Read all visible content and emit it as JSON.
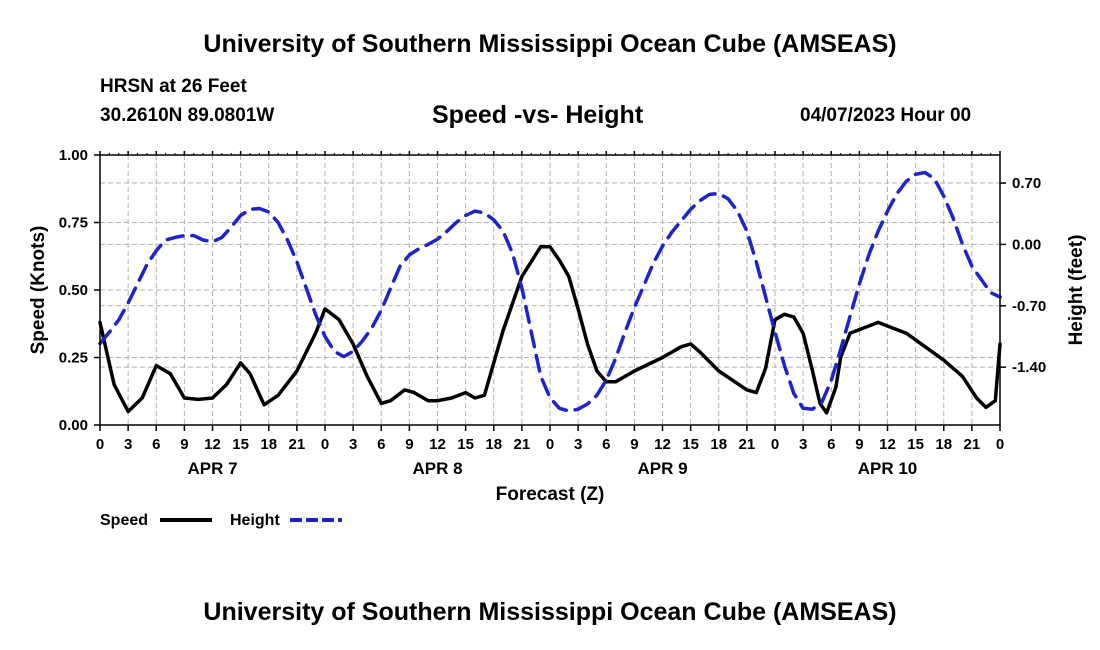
{
  "header": {
    "title": "University of Southern Mississippi Ocean Cube (AMSEAS)",
    "station": "HRSN at 26 Feet",
    "coordinates": "30.2610N  89.0801W",
    "subtitle": "Speed -vs- Height",
    "datetime": "04/07/2023 Hour 00"
  },
  "footer": {
    "title": "University of Southern Mississippi Ocean Cube (AMSEAS)"
  },
  "chart_data": {
    "type": "line",
    "xlabel": "Forecast (Z)",
    "ylabel": "Speed (Knots)",
    "y2label": "Height (feet)",
    "x_range_hours": [
      0,
      96
    ],
    "ylim": [
      0,
      1.0
    ],
    "y2lim": [
      -2.06,
      1.02
    ],
    "grid": true,
    "y_ticks": [
      "0.00",
      "0.25",
      "0.50",
      "0.75",
      "1.00"
    ],
    "y_tick_values": [
      0,
      0.25,
      0.5,
      0.75,
      1.0
    ],
    "y2_ticks": [
      "-1.40",
      "-0.70",
      "0.00",
      "0.70"
    ],
    "y2_tick_values": [
      -1.4,
      -0.7,
      0.0,
      0.7
    ],
    "x_tick_labels": [
      "0",
      "3",
      "6",
      "9",
      "12",
      "15",
      "18",
      "21"
    ],
    "day_labels": [
      "APR 7",
      "APR 8",
      "APR 9",
      "APR 10"
    ],
    "series": [
      {
        "name": "Speed",
        "color": "#000000",
        "style": "solid",
        "axis": "left",
        "points": [
          [
            0,
            0.38
          ],
          [
            1.5,
            0.15
          ],
          [
            3,
            0.05
          ],
          [
            4.5,
            0.1
          ],
          [
            6,
            0.22
          ],
          [
            7.5,
            0.19
          ],
          [
            9,
            0.1
          ],
          [
            10.5,
            0.095
          ],
          [
            12,
            0.1
          ],
          [
            13.5,
            0.15
          ],
          [
            15,
            0.23
          ],
          [
            16,
            0.19
          ],
          [
            17.5,
            0.075
          ],
          [
            19,
            0.11
          ],
          [
            21,
            0.2
          ],
          [
            23,
            0.34
          ],
          [
            24,
            0.43
          ],
          [
            25.5,
            0.39
          ],
          [
            27,
            0.3
          ],
          [
            28.5,
            0.18
          ],
          [
            30,
            0.08
          ],
          [
            31,
            0.09
          ],
          [
            32.5,
            0.13
          ],
          [
            33.5,
            0.12
          ],
          [
            35,
            0.09
          ],
          [
            36,
            0.09
          ],
          [
            37.5,
            0.1
          ],
          [
            39,
            0.12
          ],
          [
            40,
            0.1
          ],
          [
            41,
            0.11
          ],
          [
            43,
            0.35
          ],
          [
            45,
            0.55
          ],
          [
            47,
            0.66
          ],
          [
            48,
            0.66
          ],
          [
            49,
            0.61
          ],
          [
            50,
            0.55
          ],
          [
            51,
            0.43
          ],
          [
            52,
            0.3
          ],
          [
            53,
            0.2
          ],
          [
            54,
            0.16
          ],
          [
            55,
            0.16
          ],
          [
            57,
            0.2
          ],
          [
            60,
            0.25
          ],
          [
            62,
            0.29
          ],
          [
            63,
            0.3
          ],
          [
            64,
            0.27
          ],
          [
            66,
            0.2
          ],
          [
            69,
            0.13
          ],
          [
            70,
            0.12
          ],
          [
            71,
            0.21
          ],
          [
            72,
            0.39
          ],
          [
            73,
            0.41
          ],
          [
            74,
            0.4
          ],
          [
            75,
            0.34
          ],
          [
            76,
            0.2
          ],
          [
            76.8,
            0.08
          ],
          [
            77.5,
            0.045
          ],
          [
            78.5,
            0.14
          ],
          [
            79,
            0.25
          ],
          [
            80,
            0.34
          ],
          [
            83,
            0.38
          ],
          [
            86,
            0.34
          ],
          [
            90,
            0.24
          ],
          [
            92,
            0.18
          ],
          [
            93.5,
            0.1
          ],
          [
            94.5,
            0.065
          ],
          [
            95.5,
            0.09
          ],
          [
            96,
            0.3
          ]
        ]
      },
      {
        "name": "Height",
        "color": "#1f22d0",
        "style": "dashed",
        "axis": "right",
        "points": [
          [
            0,
            -1.13
          ],
          [
            1,
            -1.0
          ],
          [
            2,
            -0.86
          ],
          [
            3,
            -0.67
          ],
          [
            4,
            -0.45
          ],
          [
            5,
            -0.23
          ],
          [
            6,
            -0.07
          ],
          [
            7,
            0.05
          ],
          [
            8,
            0.08
          ],
          [
            9,
            0.1
          ],
          [
            10,
            0.1
          ],
          [
            11,
            0.05
          ],
          [
            12,
            0.03
          ],
          [
            13,
            0.08
          ],
          [
            14,
            0.2
          ],
          [
            15,
            0.33
          ],
          [
            16,
            0.4
          ],
          [
            17,
            0.41
          ],
          [
            18,
            0.37
          ],
          [
            19,
            0.25
          ],
          [
            20,
            0.05
          ],
          [
            21,
            -0.2
          ],
          [
            22,
            -0.5
          ],
          [
            23,
            -0.8
          ],
          [
            24,
            -1.05
          ],
          [
            25,
            -1.22
          ],
          [
            26,
            -1.28
          ],
          [
            27,
            -1.22
          ],
          [
            28,
            -1.1
          ],
          [
            29,
            -0.95
          ],
          [
            30,
            -0.75
          ],
          [
            31,
            -0.5
          ],
          [
            32,
            -0.25
          ],
          [
            33,
            -0.12
          ],
          [
            34,
            -0.05
          ],
          [
            35,
            0.0
          ],
          [
            36,
            0.06
          ],
          [
            37,
            0.15
          ],
          [
            38,
            0.25
          ],
          [
            39,
            0.33
          ],
          [
            40,
            0.38
          ],
          [
            41,
            0.36
          ],
          [
            42,
            0.28
          ],
          [
            43,
            0.15
          ],
          [
            44,
            -0.1
          ],
          [
            45,
            -0.5
          ],
          [
            46,
            -1.0
          ],
          [
            47,
            -1.5
          ],
          [
            48,
            -1.75
          ],
          [
            49,
            -1.87
          ],
          [
            50,
            -1.9
          ],
          [
            51,
            -1.88
          ],
          [
            52,
            -1.82
          ],
          [
            53,
            -1.72
          ],
          [
            54,
            -1.55
          ],
          [
            55,
            -1.3
          ],
          [
            56,
            -1.0
          ],
          [
            57,
            -0.72
          ],
          [
            58,
            -0.47
          ],
          [
            59,
            -0.22
          ],
          [
            60,
            -0.02
          ],
          [
            61,
            0.14
          ],
          [
            62,
            0.27
          ],
          [
            63,
            0.4
          ],
          [
            64,
            0.5
          ],
          [
            65,
            0.57
          ],
          [
            66,
            0.58
          ],
          [
            67,
            0.52
          ],
          [
            68,
            0.38
          ],
          [
            69,
            0.15
          ],
          [
            70,
            -0.2
          ],
          [
            71,
            -0.6
          ],
          [
            72,
            -1.0
          ],
          [
            73,
            -1.38
          ],
          [
            74,
            -1.7
          ],
          [
            75,
            -1.87
          ],
          [
            76,
            -1.88
          ],
          [
            77,
            -1.8
          ],
          [
            78,
            -1.55
          ],
          [
            79,
            -1.2
          ],
          [
            80,
            -0.82
          ],
          [
            81,
            -0.45
          ],
          [
            82,
            -0.12
          ],
          [
            83,
            0.15
          ],
          [
            84,
            0.38
          ],
          [
            85,
            0.58
          ],
          [
            86,
            0.72
          ],
          [
            87,
            0.8
          ],
          [
            88,
            0.82
          ],
          [
            89,
            0.75
          ],
          [
            90,
            0.55
          ],
          [
            91,
            0.3
          ],
          [
            92,
            0.0
          ],
          [
            93,
            -0.25
          ],
          [
            94,
            -0.4
          ],
          [
            95,
            -0.55
          ],
          [
            96,
            -0.6
          ]
        ]
      }
    ],
    "legend": [
      {
        "label": "Speed",
        "color": "#000000",
        "style": "solid"
      },
      {
        "label": "Height",
        "color": "#1f22d0",
        "style": "dashed"
      }
    ],
    "legend_position": "bottom-left"
  }
}
